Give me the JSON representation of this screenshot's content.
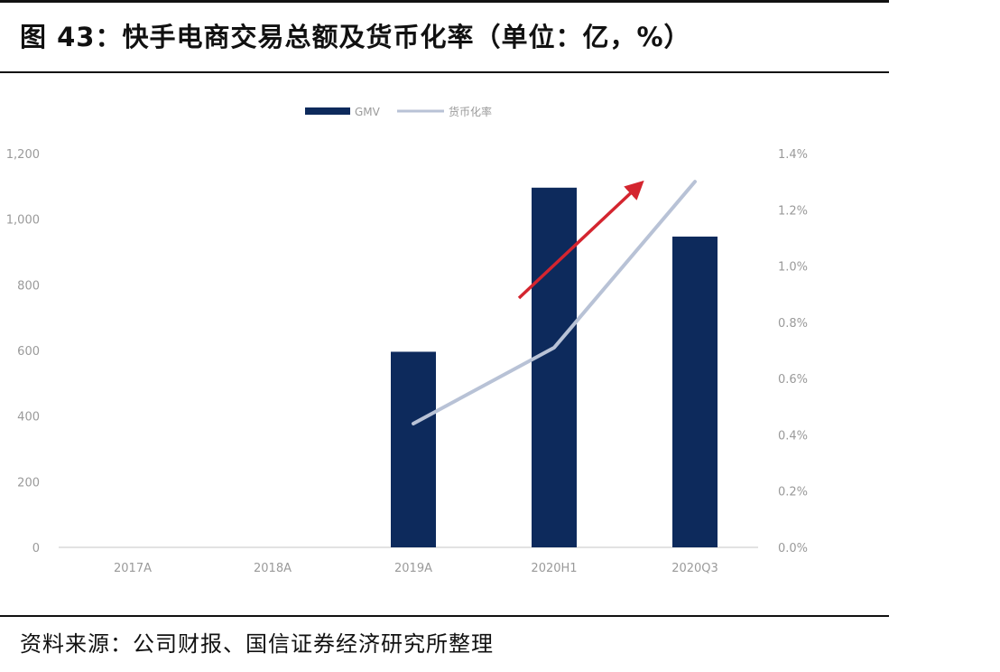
{
  "title": "图 43：快手电商交易总额及货币化率（单位：亿，%）",
  "source": "资料来源：公司财报、国信证券经济研究所整理",
  "colors": {
    "bar": "#0d2a5c",
    "line": "#b8c2d6",
    "arrow": "#d4252f",
    "axis_text": "#9a9a9a",
    "axis_line": "#d9d9d9"
  },
  "chart_data": {
    "type": "bar",
    "title": "快手电商交易总额及货币化率（单位：亿，%）",
    "categories": [
      "2017A",
      "2018A",
      "2019A",
      "2020H1",
      "2020Q3"
    ],
    "series": [
      {
        "name": "GMV",
        "type": "bar",
        "axis": "left",
        "values": [
          0,
          0,
          596,
          1096,
          947
        ]
      },
      {
        "name": "货币化率",
        "type": "line",
        "axis": "right",
        "values": [
          null,
          null,
          0.44,
          0.71,
          1.3
        ]
      }
    ],
    "left_axis": {
      "ylim": [
        0,
        1200
      ],
      "ticks": [
        "0",
        "200",
        "400",
        "600",
        "800",
        "1,000",
        "1,200"
      ]
    },
    "right_axis": {
      "ylim": [
        0.0,
        1.4
      ],
      "ticks": [
        "0.0%",
        "0.2%",
        "0.4%",
        "0.6%",
        "0.8%",
        "1.0%",
        "1.2%",
        "1.4%"
      ]
    },
    "legend": {
      "position": "top",
      "entries": [
        "GMV",
        "货币化率"
      ]
    },
    "annotations": [
      {
        "type": "arrow",
        "color": "red",
        "direction": "up-right",
        "note": "upward trend arrow"
      }
    ],
    "grid": false
  }
}
